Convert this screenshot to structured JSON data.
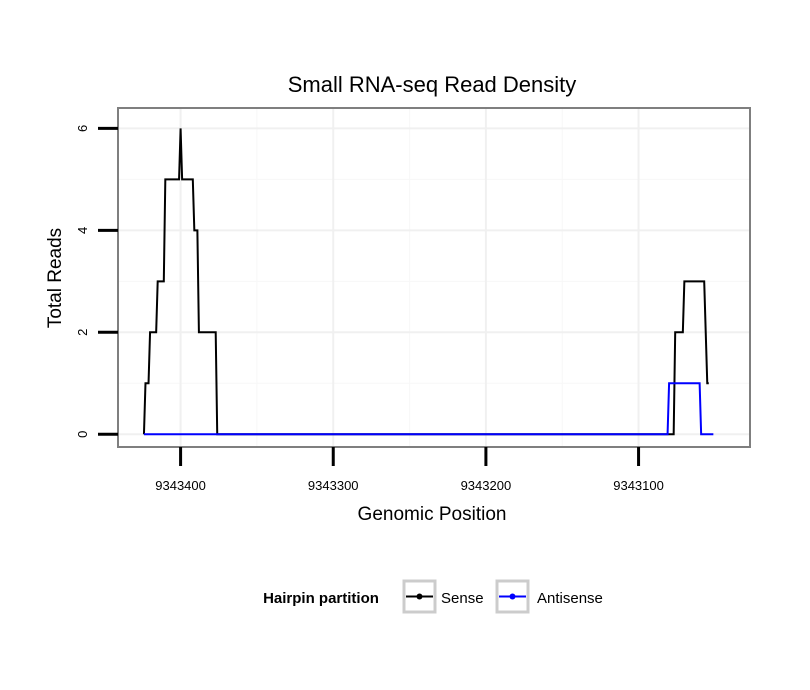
{
  "chart_data": {
    "type": "line",
    "title": "Small RNA-seq Read Density",
    "xlabel": "Genomic Position",
    "ylabel": "Total Reads",
    "xlim": [
      9343441,
      9343027
    ],
    "ylim": [
      -0.25,
      6.4
    ],
    "x_reversed": true,
    "x_ticks": [
      9343400,
      9343300,
      9343200,
      9343100
    ],
    "x_tick_labels": [
      "9343400",
      "9343300",
      "9343200",
      "9343100"
    ],
    "y_ticks": [
      0,
      2,
      4,
      6
    ],
    "y_tick_labels": [
      "0",
      "2",
      "4",
      "6"
    ],
    "x_minor_gridlines": [
      9343350,
      9343250,
      9343150
    ],
    "y_minor_gridlines": [
      1,
      3,
      5
    ],
    "grid": true,
    "legend": {
      "title": "Hairpin partition",
      "position": "bottom",
      "entries": [
        "Sense",
        "Antisense"
      ]
    },
    "series": [
      {
        "name": "Sense",
        "color": "#000000",
        "points": [
          [
            9343424,
            0
          ],
          [
            9343423,
            1
          ],
          [
            9343421,
            1
          ],
          [
            9343420,
            2
          ],
          [
            9343416,
            2
          ],
          [
            9343415,
            3
          ],
          [
            9343411,
            3
          ],
          [
            9343410,
            5
          ],
          [
            9343401,
            5
          ],
          [
            9343400,
            6
          ],
          [
            9343399,
            5
          ],
          [
            9343392,
            5
          ],
          [
            9343391,
            4
          ],
          [
            9343389,
            4
          ],
          [
            9343388,
            2
          ],
          [
            9343377,
            2
          ],
          [
            9343376,
            0
          ],
          [
            9343077,
            0
          ],
          [
            9343076,
            2
          ],
          [
            9343071,
            2
          ],
          [
            9343070,
            3
          ],
          [
            9343057,
            3
          ],
          [
            9343056,
            2
          ],
          [
            9343055,
            1
          ],
          [
            9343054,
            1
          ]
        ]
      },
      {
        "name": "Antisense",
        "color": "#0000ff",
        "points": [
          [
            9343424,
            0
          ],
          [
            9343081,
            0
          ],
          [
            9343080,
            1
          ],
          [
            9343060,
            1
          ],
          [
            9343059,
            0
          ],
          [
            9343051,
            0
          ]
        ]
      }
    ]
  }
}
